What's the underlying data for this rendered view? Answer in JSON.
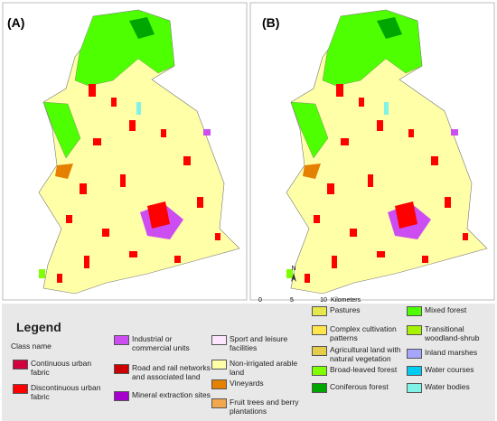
{
  "panels": [
    {
      "label": "(A)"
    },
    {
      "label": "(B)"
    }
  ],
  "north": "N",
  "scale_bar": {
    "ticks": [
      "0",
      "5",
      "10"
    ],
    "unit": "Kilometers"
  },
  "legend": {
    "title": "Legend",
    "subtitle": "Class name",
    "items": [
      {
        "label": "Continuous urban fabric",
        "color": "#d2003c"
      },
      {
        "label": "Discontinuous urban fabric",
        "color": "#ff0000"
      },
      {
        "label": "Industrial or commercial units",
        "color": "#cc4df2"
      },
      {
        "label": "Road and rail networks and associated land",
        "color": "#cc0000"
      },
      {
        "label": "Mineral extraction sites",
        "color": "#a600cc"
      },
      {
        "label": "Sport and leisure facilities",
        "color": "#ffe6ff"
      },
      {
        "label": "Non-irrigated arable land",
        "color": "#ffffa8"
      },
      {
        "label": "Vineyards",
        "color": "#e68000"
      },
      {
        "label": "Fruit trees and berry plantations",
        "color": "#f2a64d"
      },
      {
        "label": "Pastures",
        "color": "#e6e64d"
      },
      {
        "label": "Complex cultivation patterns",
        "color": "#ffe64d"
      },
      {
        "label": "Agricultural land with natural vegetation",
        "color": "#e6cc4d"
      },
      {
        "label": "Broad-leaved forest",
        "color": "#80ff00"
      },
      {
        "label": "Coniferous forest",
        "color": "#00a600"
      },
      {
        "label": "Mixed forest",
        "color": "#4dff00"
      },
      {
        "label": "Transitional woodland-shrub",
        "color": "#a6f200"
      },
      {
        "label": "Inland marshes",
        "color": "#a6a6ff"
      },
      {
        "label": "Water courses",
        "color": "#00ccf2"
      },
      {
        "label": "Water bodies",
        "color": "#80f2e6"
      }
    ]
  }
}
